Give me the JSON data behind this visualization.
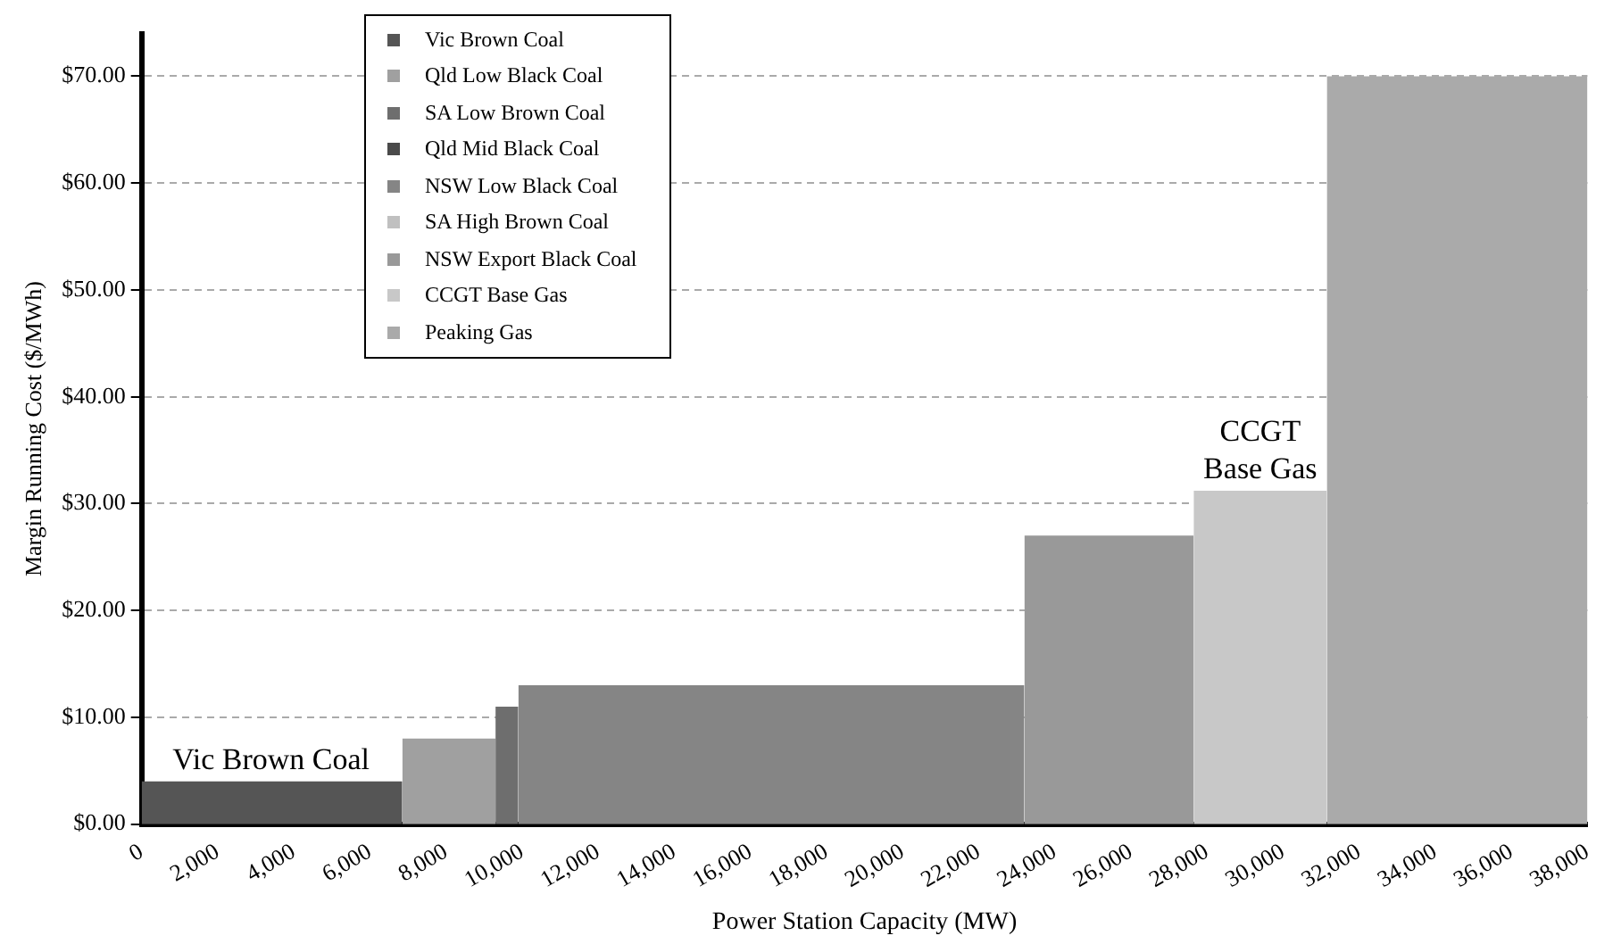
{
  "chart_data": {
    "type": "area",
    "xlabel": "Power Station Capacity (MW)",
    "ylabel": "Margin Running Cost ($/MWh)",
    "xlim": [
      0,
      38000
    ],
    "xticks": [
      {
        "value": 0,
        "label": "0"
      },
      {
        "value": 2000,
        "label": "2,000"
      },
      {
        "value": 4000,
        "label": "4,000"
      },
      {
        "value": 6000,
        "label": "6,000"
      },
      {
        "value": 8000,
        "label": "8,000"
      },
      {
        "value": 10000,
        "label": "10,000"
      },
      {
        "value": 12000,
        "label": "12,000"
      },
      {
        "value": 14000,
        "label": "14,000"
      },
      {
        "value": 16000,
        "label": "16,000"
      },
      {
        "value": 18000,
        "label": "18,000"
      },
      {
        "value": 20000,
        "label": "20,000"
      },
      {
        "value": 22000,
        "label": "22,000"
      },
      {
        "value": 24000,
        "label": "24,000"
      },
      {
        "value": 26000,
        "label": "26,000"
      },
      {
        "value": 28000,
        "label": "28,000"
      },
      {
        "value": 30000,
        "label": "30,000"
      },
      {
        "value": 32000,
        "label": "32,000"
      },
      {
        "value": 34000,
        "label": "34,000"
      },
      {
        "value": 36000,
        "label": "36,000"
      },
      {
        "value": 38000,
        "label": "38,000"
      }
    ],
    "ylim": [
      0,
      74
    ],
    "yticks": [
      {
        "value": 0,
        "label": "$0.00"
      },
      {
        "value": 10,
        "label": "$10.00"
      },
      {
        "value": 20,
        "label": "$20.00"
      },
      {
        "value": 30,
        "label": "$30.00"
      },
      {
        "value": 40,
        "label": "$40.00"
      },
      {
        "value": 50,
        "label": "$50.00"
      },
      {
        "value": 60,
        "label": "$60.00"
      },
      {
        "value": 70,
        "label": "$70.00"
      }
    ],
    "grid": "y",
    "legend": "top left",
    "series": [
      {
        "name": "Vic Brown Coal",
        "color": "#555555",
        "x": [
          0,
          6850
        ],
        "values": [
          4,
          4
        ]
      },
      {
        "name": "Qld Low Black Coal",
        "color": "#a0a0a0",
        "x": [
          6850,
          9300
        ],
        "values": [
          8,
          8
        ]
      },
      {
        "name": "SA Low Brown Coal",
        "color": "#6e6e6e",
        "x": [
          9300,
          9900
        ],
        "values": [
          11,
          11
        ]
      },
      {
        "name": "Qld Mid Black Coal",
        "color": "#4a4a4a"
      },
      {
        "name": "NSW Low Black Coal",
        "color": "#858585",
        "x": [
          9900,
          23200
        ],
        "values": [
          13,
          13
        ]
      },
      {
        "name": "SA High Brown Coal",
        "color": "#c0c0c0"
      },
      {
        "name": "NSW Export Black Coal",
        "color": "#999999",
        "x": [
          23200,
          27650
        ],
        "values": [
          27,
          27
        ]
      },
      {
        "name": "CCGT Base Gas",
        "color": "#c8c8c8",
        "x": [
          27650,
          31150
        ],
        "values": [
          31.2,
          31.2
        ]
      },
      {
        "name": "Peaking Gas",
        "color": "#aaaaaa",
        "x": [
          31150,
          38000
        ],
        "values": [
          70,
          70
        ]
      }
    ],
    "annotations": [
      {
        "text": "Vic Brown Coal",
        "x": 3400,
        "y": 4
      },
      {
        "text": "CCGT\nBase Gas",
        "x": 29400,
        "y": 31.2
      }
    ]
  }
}
